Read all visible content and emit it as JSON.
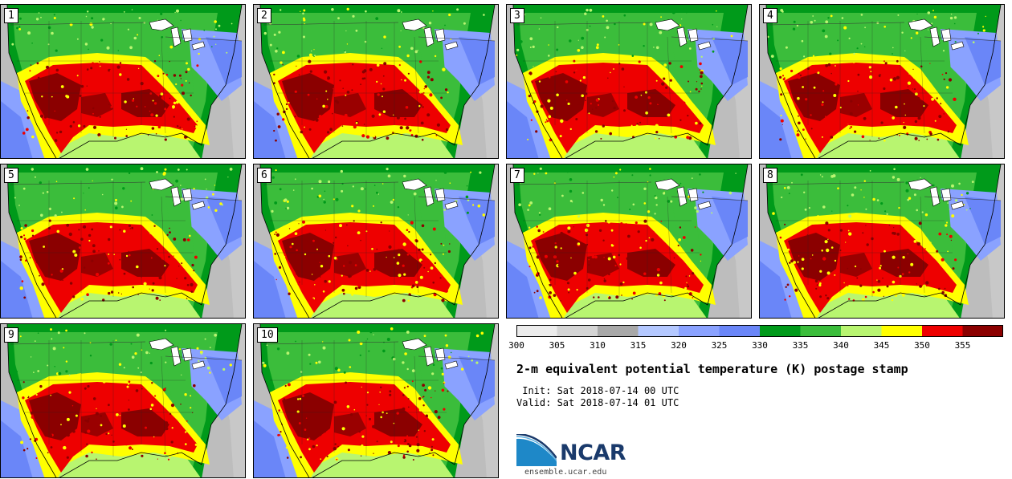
{
  "panels": [
    {
      "label": "1"
    },
    {
      "label": "2"
    },
    {
      "label": "3"
    },
    {
      "label": "4"
    },
    {
      "label": "5"
    },
    {
      "label": "6"
    },
    {
      "label": "7"
    },
    {
      "label": "8"
    },
    {
      "label": "9"
    },
    {
      "label": "10"
    }
  ],
  "legend": {
    "ticks": [
      "300",
      "305",
      "310",
      "315",
      "320",
      "325",
      "330",
      "335",
      "340",
      "345",
      "350",
      "355"
    ],
    "colors": [
      "#ececec",
      "#d4d4d4",
      "#a8a8a8",
      "#b4c8ff",
      "#8aa2ff",
      "#6a86f8",
      "#009a1a",
      "#3bbd3b",
      "#b8f570",
      "#ffff00",
      "#ee0000",
      "#8b0000"
    ],
    "bins": [
      {
        "from": 300,
        "to": 305
      },
      {
        "from": 305,
        "to": 310
      },
      {
        "from": 310,
        "to": 315
      },
      {
        "from": 315,
        "to": 320
      },
      {
        "from": 320,
        "to": 325
      },
      {
        "from": 325,
        "to": 330
      },
      {
        "from": 330,
        "to": 335
      },
      {
        "from": 335,
        "to": 340
      },
      {
        "from": 340,
        "to": 345
      },
      {
        "from": 345,
        "to": 350
      },
      {
        "from": 350,
        "to": 355
      },
      {
        "from": 355,
        "to": 360
      }
    ]
  },
  "title": "2-m equivalent potential temperature (K) postage stamp",
  "init_text": " Init: Sat 2018-07-14 00 UTC",
  "valid_text": "Valid: Sat 2018-07-14 01 UTC",
  "logo": {
    "text": "NCAR",
    "url": "ensemble.ucar.edu",
    "color": "#1a3a6b",
    "accent": "#1e88c8"
  }
}
